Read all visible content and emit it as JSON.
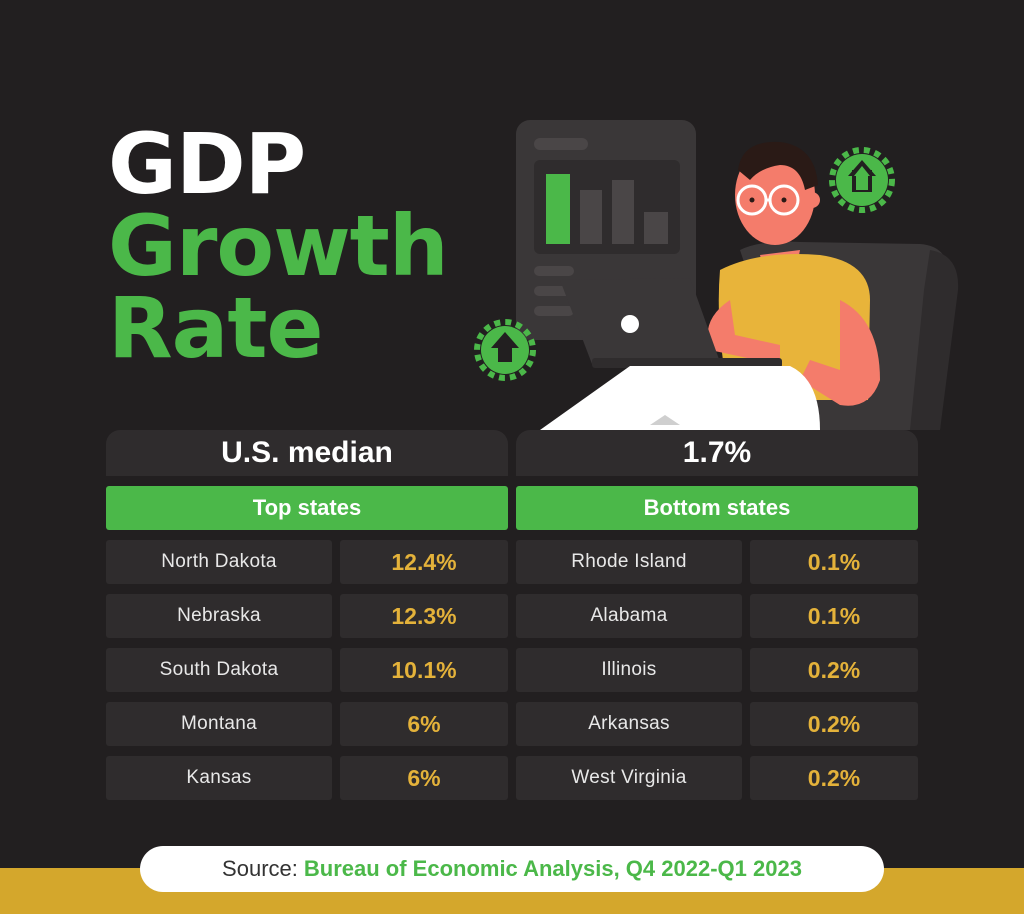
{
  "title": {
    "line1": "GDP",
    "line2": "Growth",
    "line3": "Rate"
  },
  "median": {
    "label": "U.S. median",
    "value": "1.7%"
  },
  "top": {
    "header": "Top states",
    "rows": [
      {
        "state": "North Dakota",
        "value": "12.4%"
      },
      {
        "state": "Nebraska",
        "value": "12.3%"
      },
      {
        "state": "South Dakota",
        "value": "10.1%"
      },
      {
        "state": "Montana",
        "value": "6%"
      },
      {
        "state": "Kansas",
        "value": "6%"
      }
    ]
  },
  "bottom": {
    "header": "Bottom states",
    "rows": [
      {
        "state": "Rhode Island",
        "value": "0.1%"
      },
      {
        "state": "Alabama",
        "value": "0.1%"
      },
      {
        "state": "Illinois",
        "value": "0.2%"
      },
      {
        "state": "Arkansas",
        "value": "0.2%"
      },
      {
        "state": "West Virginia",
        "value": "0.2%"
      }
    ]
  },
  "source": {
    "label": "Source:",
    "text": "Bureau of Economic Analysis, Q4 2022-Q1 2023"
  },
  "colors": {
    "background": "#221f20",
    "green": "#4bb849",
    "gold": "#e4b23a",
    "cell": "#2f2c2d",
    "band": "#d4a72c"
  }
}
